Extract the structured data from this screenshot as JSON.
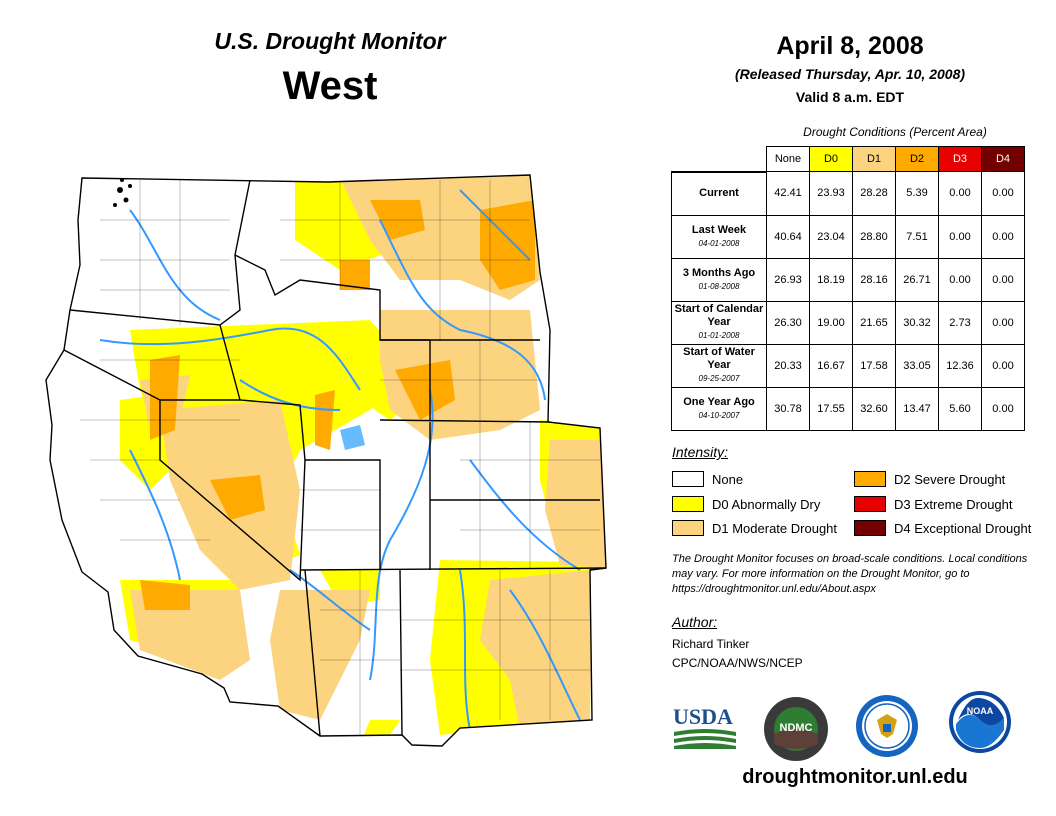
{
  "header": {
    "title": "U.S. Drought Monitor",
    "region": "West",
    "date": "April 8, 2008",
    "released": "(Released Thursday, Apr. 10, 2008)",
    "valid": "Valid 8 a.m. EDT"
  },
  "conditions": {
    "caption": "Drought Conditions (Percent Area)",
    "columns": [
      "None",
      "D0",
      "D1",
      "D2",
      "D3",
      "D4"
    ],
    "column_colors": [
      "#ffffff",
      "#ffff00",
      "#fcd37f",
      "#ffaa00",
      "#e60000",
      "#730000"
    ],
    "rows": [
      {
        "label": "Current",
        "sub": "",
        "values": [
          "42.41",
          "23.93",
          "28.28",
          "5.39",
          "0.00",
          "0.00"
        ]
      },
      {
        "label": "Last Week",
        "sub": "04-01-2008",
        "values": [
          "40.64",
          "23.04",
          "28.80",
          "7.51",
          "0.00",
          "0.00"
        ]
      },
      {
        "label": "3 Months Ago",
        "sub": "01-08-2008",
        "values": [
          "26.93",
          "18.19",
          "28.16",
          "26.71",
          "0.00",
          "0.00"
        ]
      },
      {
        "label": "Start of Calendar Year",
        "sub": "01-01-2008",
        "values": [
          "26.30",
          "19.00",
          "21.65",
          "30.32",
          "2.73",
          "0.00"
        ]
      },
      {
        "label": "Start of Water Year",
        "sub": "09-25-2007",
        "values": [
          "20.33",
          "16.67",
          "17.58",
          "33.05",
          "12.36",
          "0.00"
        ]
      },
      {
        "label": "One Year Ago",
        "sub": "04-10-2007",
        "values": [
          "30.78",
          "17.55",
          "32.60",
          "13.47",
          "5.60",
          "0.00"
        ]
      }
    ]
  },
  "legend": {
    "heading": "Intensity:",
    "items": [
      {
        "label": "None",
        "color": "#ffffff"
      },
      {
        "label": "D0 Abnormally Dry",
        "color": "#ffff00"
      },
      {
        "label": "D1 Moderate Drought",
        "color": "#fcd37f"
      },
      {
        "label": "D2 Severe Drought",
        "color": "#ffaa00"
      },
      {
        "label": "D3 Extreme Drought",
        "color": "#e60000"
      },
      {
        "label": "D4 Exceptional Drought",
        "color": "#730000"
      }
    ]
  },
  "note": "The Drought Monitor focuses on broad-scale conditions. Local conditions may vary. For more information on the Drought Monitor, go to https://droughtmonitor.unl.edu/About.aspx",
  "author": {
    "heading": "Author:",
    "name": "Richard Tinker",
    "org": "CPC/NOAA/NWS/NCEP"
  },
  "logos": {
    "usda": "USDA",
    "ndmc": "NDMC",
    "noaa": "NOAA"
  },
  "footer_url": "droughtmonitor.unl.edu",
  "colors": {
    "water": "#3399ff",
    "border": "#000000"
  }
}
